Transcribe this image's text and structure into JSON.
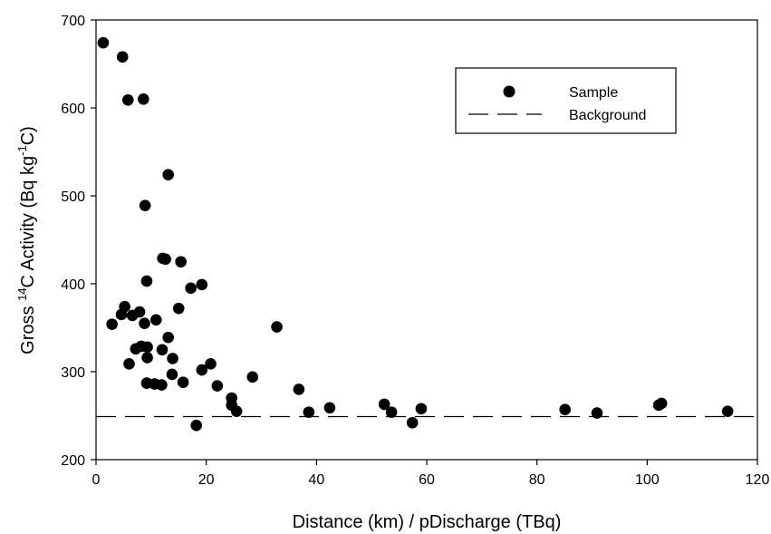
{
  "chart_data": {
    "type": "scatter",
    "xlabel": "Distance (km) / pDischarge (TBq)",
    "ylabel": {
      "prefix": "Gross ",
      "sup1": "14",
      "mid": "C Activity (Bq kg",
      "sup2": "-1",
      "suffix": "C)"
    },
    "xlim": [
      0,
      120
    ],
    "ylim": [
      200,
      700
    ],
    "xticks": [
      "0",
      "20",
      "40",
      "60",
      "80",
      "100",
      "120"
    ],
    "yticks": [
      "200",
      "300",
      "400",
      "500",
      "600",
      "700"
    ],
    "grid": false,
    "legend": {
      "placement": "top-right",
      "entries": [
        "Sample",
        "Background"
      ]
    },
    "series": [
      {
        "name": "Sample",
        "marker": "circle",
        "color": "#000000",
        "points": [
          [
            1.3,
            674
          ],
          [
            4.8,
            658
          ],
          [
            5.8,
            609
          ],
          [
            8.6,
            610
          ],
          [
            13.1,
            524
          ],
          [
            8.9,
            489
          ],
          [
            12.1,
            429
          ],
          [
            12.6,
            428
          ],
          [
            15.4,
            425
          ],
          [
            9.2,
            403
          ],
          [
            19.2,
            399
          ],
          [
            17.2,
            395
          ],
          [
            15.0,
            372
          ],
          [
            2.9,
            354
          ],
          [
            5.2,
            374
          ],
          [
            4.6,
            365
          ],
          [
            6.6,
            364
          ],
          [
            7.9,
            368
          ],
          [
            10.9,
            359
          ],
          [
            8.8,
            355
          ],
          [
            32.8,
            351
          ],
          [
            13.1,
            339
          ],
          [
            9.3,
            328
          ],
          [
            7.2,
            326
          ],
          [
            8.2,
            329
          ],
          [
            12.0,
            325
          ],
          [
            9.3,
            316
          ],
          [
            13.9,
            315
          ],
          [
            20.8,
            309
          ],
          [
            6.0,
            309
          ],
          [
            19.2,
            302
          ],
          [
            13.8,
            297
          ],
          [
            28.4,
            294
          ],
          [
            9.2,
            287
          ],
          [
            10.6,
            286
          ],
          [
            11.9,
            285
          ],
          [
            15.8,
            288
          ],
          [
            22.0,
            284
          ],
          [
            36.8,
            280
          ],
          [
            24.6,
            270
          ],
          [
            24.6,
            262
          ],
          [
            42.4,
            259
          ],
          [
            52.3,
            263
          ],
          [
            85.1,
            257
          ],
          [
            102.6,
            264
          ],
          [
            102.1,
            262
          ],
          [
            59.0,
            258
          ],
          [
            25.5,
            255
          ],
          [
            38.6,
            254
          ],
          [
            53.6,
            254
          ],
          [
            90.9,
            253
          ],
          [
            114.6,
            255
          ],
          [
            57.4,
            242
          ],
          [
            18.2,
            239
          ]
        ]
      },
      {
        "name": "Background",
        "style": "dashed",
        "color": "#000000",
        "y": 249
      }
    ]
  }
}
